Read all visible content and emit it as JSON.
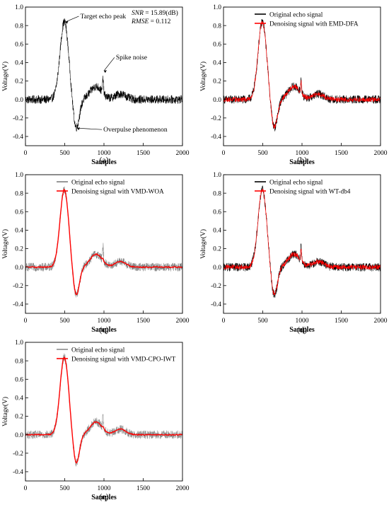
{
  "chart_data": [
    {
      "type": "line",
      "panel_label": "(a)",
      "xlabel": "Samples",
      "ylabel": "Voltage(V)",
      "xlim": [
        0,
        2000
      ],
      "ylim": [
        -0.5,
        1.0
      ],
      "xticks": [
        0,
        500,
        1000,
        1500,
        2000
      ],
      "yticks": [
        -0.4,
        -0.2,
        0.0,
        0.2,
        0.4,
        0.6,
        0.8,
        1.0
      ],
      "metrics": {
        "snr_label": "SNR",
        "snr_value": " = 15.89(dB)",
        "rmse_label": "RMSE",
        "rmse_value": " = 0.112"
      },
      "annotations": [
        {
          "text": "Target echo peak",
          "x": 500,
          "y": 0.84
        },
        {
          "text": "Spike noise",
          "x": 990,
          "y": 0.31
        },
        {
          "text": "Overpulse phenomenon",
          "x": 650,
          "y": -0.31
        }
      ],
      "series": [
        {
          "style": "noisy",
          "color": "#000000"
        }
      ]
    },
    {
      "type": "line",
      "panel_label": "(b)",
      "xlabel": "Samples",
      "ylabel": "Voltage(V)",
      "xlim": [
        0,
        2000
      ],
      "ylim": [
        -0.5,
        1.0
      ],
      "xticks": [
        0,
        500,
        1000,
        1500,
        2000
      ],
      "yticks": [
        -0.4,
        -0.2,
        0.0,
        0.2,
        0.4,
        0.6,
        0.8,
        1.0
      ],
      "legend_placement": "top-right",
      "series": [
        {
          "name": "Original echo signal",
          "style": "noisy",
          "color": "#000000"
        },
        {
          "name": "Denoising signal with EMD-DFA",
          "style": "mild",
          "color": "#ff0000"
        }
      ]
    },
    {
      "type": "line",
      "panel_label": "(c)",
      "xlabel": "Samples",
      "ylabel": "Voltage(V)",
      "xlim": [
        0,
        2000
      ],
      "ylim": [
        -0.5,
        1.0
      ],
      "xticks": [
        0,
        500,
        1000,
        1500,
        2000
      ],
      "yticks": [
        -0.4,
        -0.2,
        0.0,
        0.2,
        0.4,
        0.6,
        0.8,
        1.0
      ],
      "legend_placement": "top-right",
      "series": [
        {
          "name": "Original echo signal",
          "style": "noisy",
          "color": "#7f7f7f"
        },
        {
          "name": "Denoising signal with VMD-WOA",
          "style": "smooth",
          "color": "#ff0000"
        }
      ]
    },
    {
      "type": "line",
      "panel_label": "(d)",
      "xlabel": "Samples",
      "ylabel": "Voltage(V)",
      "xlim": [
        0,
        2000
      ],
      "ylim": [
        -0.5,
        1.0
      ],
      "xticks": [
        0,
        500,
        1000,
        1500,
        2000
      ],
      "yticks": [
        -0.4,
        -0.2,
        0.0,
        0.2,
        0.4,
        0.6,
        0.8,
        1.0
      ],
      "legend_placement": "top-right",
      "series": [
        {
          "name": "Original echo signal",
          "style": "noisy",
          "color": "#000000"
        },
        {
          "name": "Denoising signal with WT-db4",
          "style": "mild",
          "color": "#ff0000"
        }
      ]
    },
    {
      "type": "line",
      "panel_label": "(e)",
      "xlabel": "Samples",
      "ylabel": "Voltage(V)",
      "xlim": [
        0,
        2000
      ],
      "ylim": [
        -0.5,
        1.0
      ],
      "xticks": [
        0,
        500,
        1000,
        1500,
        2000
      ],
      "yticks": [
        -0.4,
        -0.2,
        0.0,
        0.2,
        0.4,
        0.6,
        0.8,
        1.0
      ],
      "legend_placement": "top-right",
      "series": [
        {
          "name": "Original echo signal",
          "style": "noisy",
          "color": "#8c8c8c"
        },
        {
          "name": "Denoising signal with VMD-CPO-IWT",
          "style": "smooth",
          "color": "#ff0000"
        }
      ]
    }
  ]
}
